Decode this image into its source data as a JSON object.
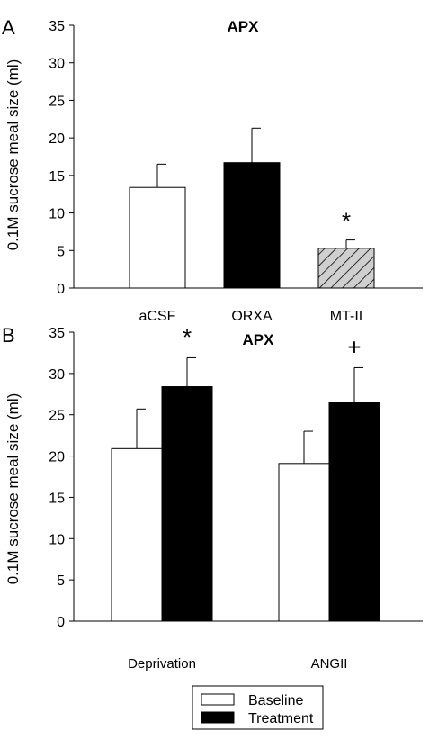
{
  "chart_data": [
    {
      "type": "bar",
      "panel": "A",
      "title": "APX",
      "ylabel": "0.1M sucrose meal size (ml)",
      "ylim": [
        0,
        35
      ],
      "yticks": [
        0,
        5,
        10,
        15,
        20,
        25,
        30,
        35
      ],
      "categories": [
        "aCSF",
        "ORXA",
        "MT-II"
      ],
      "values": [
        13.4,
        16.7,
        5.3
      ],
      "errors": [
        3.1,
        4.6,
        1.1
      ],
      "fills": [
        "#ffffff",
        "#000000",
        "hatch"
      ],
      "annotations": [
        "",
        "",
        "*"
      ]
    },
    {
      "type": "bar",
      "panel": "B",
      "title": "APX",
      "ylabel": "0.1M sucrose meal size (ml)",
      "ylim": [
        0,
        35
      ],
      "yticks": [
        0,
        5,
        10,
        15,
        20,
        25,
        30,
        35
      ],
      "categories": [
        "Deprivation",
        "ANGII"
      ],
      "series": [
        {
          "name": "Baseline",
          "values": [
            20.9,
            19.1
          ],
          "errors": [
            4.8,
            3.9
          ],
          "color": "#ffffff"
        },
        {
          "name": "Treatment",
          "values": [
            28.4,
            26.5
          ],
          "errors": [
            3.5,
            4.2
          ],
          "color": "#000000"
        }
      ],
      "annotations": [
        "*",
        "+"
      ],
      "legend": "bottom-center"
    }
  ]
}
